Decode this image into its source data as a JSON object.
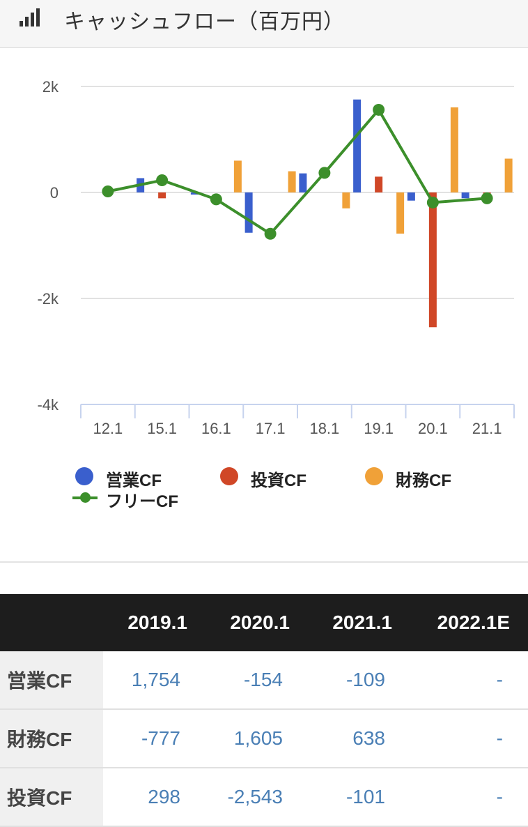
{
  "header": {
    "title": "キャッシュフロー（百万円）",
    "icon": "bar-signal-icon"
  },
  "chart_data": {
    "type": "bar",
    "categories": [
      "12.1",
      "15.1",
      "16.1",
      "17.1",
      "18.1",
      "19.1",
      "20.1",
      "21.1"
    ],
    "series": [
      {
        "name": "営業CF",
        "type": "bar",
        "color": "#3a5fcd",
        "values": [
          0,
          270,
          -40,
          -760,
          360,
          1754,
          -154,
          -109
        ]
      },
      {
        "name": "投資CF",
        "type": "bar",
        "color": "#d04727",
        "values": [
          0,
          -110,
          0,
          0,
          0,
          298,
          -2543,
          -101
        ]
      },
      {
        "name": "財務CF",
        "type": "bar",
        "color": "#f0a138",
        "values": [
          0,
          0,
          600,
          400,
          -300,
          -777,
          1605,
          638
        ]
      },
      {
        "name": "フリーCF",
        "type": "line",
        "color": "#3c8f2b",
        "values": [
          20,
          230,
          -130,
          -780,
          370,
          1560,
          -190,
          -110
        ]
      }
    ],
    "yticks": [
      "2k",
      "0",
      "-2k",
      "-4k"
    ],
    "ytick_values": [
      2000,
      0,
      -2000,
      -4000
    ],
    "ylim": [
      -4000,
      2000
    ],
    "grid": true,
    "legend": "bottom"
  },
  "table": {
    "headers": [
      "",
      "2019.1",
      "2020.1",
      "2021.1",
      "2022.1E"
    ],
    "rows": [
      {
        "label": "営業CF",
        "values": [
          "1,754",
          "-154",
          "-109",
          "-"
        ]
      },
      {
        "label": "財務CF",
        "values": [
          "-777",
          "1,605",
          "638",
          "-"
        ]
      },
      {
        "label": "投資CF",
        "values": [
          "298",
          "-2,543",
          "-101",
          "-"
        ]
      }
    ]
  }
}
